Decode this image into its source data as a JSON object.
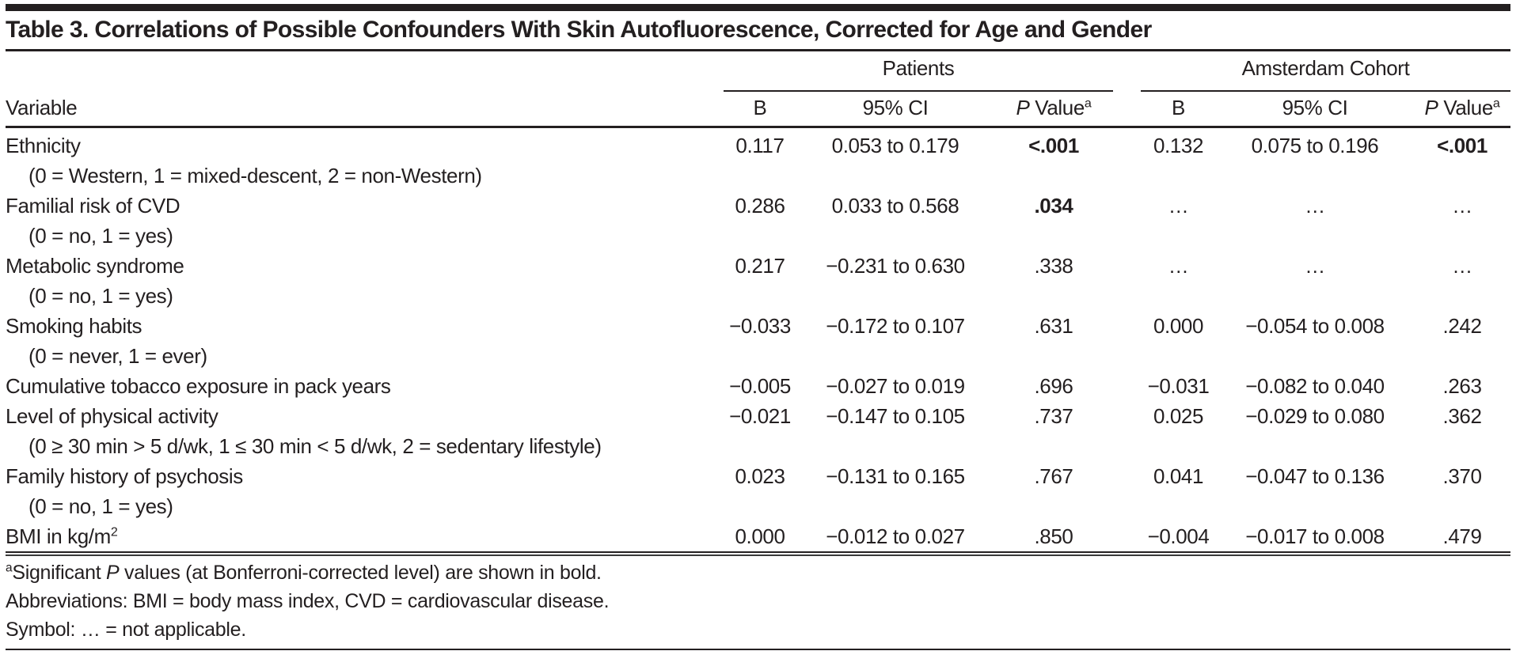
{
  "title": "Table 3. Correlations of Possible Confounders With Skin Autofluorescence, Corrected for Age and Gender",
  "header": {
    "variable": "Variable",
    "group_patients": "Patients",
    "group_amsterdam": "Amsterdam Cohort",
    "col_b": "B",
    "col_ci": "95% CI",
    "col_p_italic": "P",
    "col_p_rest": " Value",
    "col_p_sup": "a"
  },
  "rows": [
    {
      "label": "Ethnicity",
      "sub": "(0 = Western, 1 = mixed-descent, 2 = non-Western)",
      "p": {
        "b": "0.117",
        "ci": "0.053 to 0.179",
        "pv": "<.001"
      },
      "a": {
        "b": "0.132",
        "ci": "0.075 to 0.196",
        "pv": "<.001"
      }
    },
    {
      "label": "Familial risk of CVD",
      "sub": "(0 = no, 1 = yes)",
      "p": {
        "b": "0.286",
        "ci": "0.033 to 0.568",
        "pv": ".034"
      },
      "a": {
        "b": "…",
        "ci": "…",
        "pv": "…"
      }
    },
    {
      "label": "Metabolic syndrome",
      "sub": "(0 = no, 1 = yes)",
      "p": {
        "b": "0.217",
        "ci": "−0.231 to 0.630",
        "pv": ".338"
      },
      "a": {
        "b": "…",
        "ci": "…",
        "pv": "…"
      }
    },
    {
      "label": "Smoking habits",
      "sub": "(0 = never, 1 = ever)",
      "p": {
        "b": "−0.033",
        "ci": "−0.172 to 0.107",
        "pv": ".631"
      },
      "a": {
        "b": "0.000",
        "ci": "−0.054 to 0.008",
        "pv": ".242"
      }
    },
    {
      "label": "Cumulative tobacco exposure in pack years",
      "p": {
        "b": "−0.005",
        "ci": "−0.027 to 0.019",
        "pv": ".696"
      },
      "a": {
        "b": "−0.031",
        "ci": "−0.082 to 0.040",
        "pv": ".263"
      }
    },
    {
      "label": "Level of physical activity",
      "sub": "(0 ≥ 30 min > 5 d/wk, 1 ≤ 30 min < 5 d/wk, 2 = sedentary lifestyle)",
      "p": {
        "b": "−0.021",
        "ci": "−0.147 to 0.105",
        "pv": ".737"
      },
      "a": {
        "b": "0.025",
        "ci": "−0.029 to 0.080",
        "pv": ".362"
      }
    },
    {
      "label": "Family history of psychosis",
      "sub": "(0 = no, 1 = yes)",
      "p": {
        "b": "0.023",
        "ci": "−0.131 to 0.165",
        "pv": ".767"
      },
      "a": {
        "b": "0.041",
        "ci": "−0.047 to 0.136",
        "pv": ".370"
      }
    },
    {
      "label": "BMI in kg/m",
      "label_sup": "2",
      "p": {
        "b": "0.000",
        "ci": "−0.012 to 0.027",
        "pv": ".850"
      },
      "a": {
        "b": "−0.004",
        "ci": "−0.017 to 0.008",
        "pv": ".479"
      }
    }
  ],
  "footnotes": {
    "f1_sup": "a",
    "f1_pre": "Significant ",
    "f1_p": "P",
    "f1_post": " values (at Bonferroni-corrected level) are shown in bold.",
    "f2": "Abbreviations: BMI = body mass index, CVD = cardiovascular disease.",
    "f3": "Symbol: … = not applicable."
  }
}
